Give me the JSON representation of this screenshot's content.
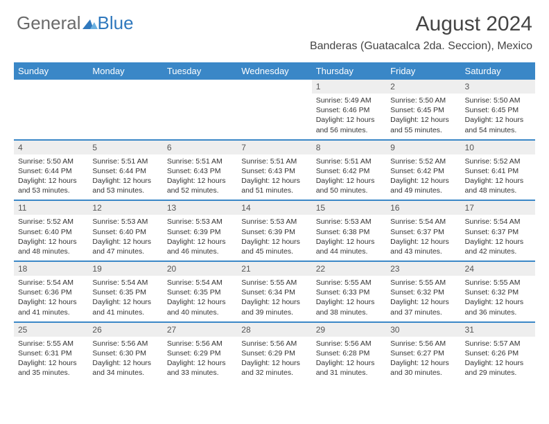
{
  "logo": {
    "general": "General",
    "blue": "Blue"
  },
  "title": "August 2024",
  "location": "Banderas (Guatacalca 2da. Seccion), Mexico",
  "daysOfWeek": [
    "Sunday",
    "Monday",
    "Tuesday",
    "Wednesday",
    "Thursday",
    "Friday",
    "Saturday"
  ],
  "colors": {
    "headerBlue": "#3a87c7",
    "dayNumBg": "#eeeeee",
    "text": "#333333",
    "titleText": "#444444"
  },
  "weeks": [
    {
      "days": [
        {
          "n": "",
          "sunrise": "",
          "sunset": "",
          "daylight1": "",
          "daylight2": ""
        },
        {
          "n": "",
          "sunrise": "",
          "sunset": "",
          "daylight1": "",
          "daylight2": ""
        },
        {
          "n": "",
          "sunrise": "",
          "sunset": "",
          "daylight1": "",
          "daylight2": ""
        },
        {
          "n": "",
          "sunrise": "",
          "sunset": "",
          "daylight1": "",
          "daylight2": ""
        },
        {
          "n": "1",
          "sunrise": "Sunrise: 5:49 AM",
          "sunset": "Sunset: 6:46 PM",
          "daylight1": "Daylight: 12 hours",
          "daylight2": "and 56 minutes."
        },
        {
          "n": "2",
          "sunrise": "Sunrise: 5:50 AM",
          "sunset": "Sunset: 6:45 PM",
          "daylight1": "Daylight: 12 hours",
          "daylight2": "and 55 minutes."
        },
        {
          "n": "3",
          "sunrise": "Sunrise: 5:50 AM",
          "sunset": "Sunset: 6:45 PM",
          "daylight1": "Daylight: 12 hours",
          "daylight2": "and 54 minutes."
        }
      ]
    },
    {
      "days": [
        {
          "n": "4",
          "sunrise": "Sunrise: 5:50 AM",
          "sunset": "Sunset: 6:44 PM",
          "daylight1": "Daylight: 12 hours",
          "daylight2": "and 53 minutes."
        },
        {
          "n": "5",
          "sunrise": "Sunrise: 5:51 AM",
          "sunset": "Sunset: 6:44 PM",
          "daylight1": "Daylight: 12 hours",
          "daylight2": "and 53 minutes."
        },
        {
          "n": "6",
          "sunrise": "Sunrise: 5:51 AM",
          "sunset": "Sunset: 6:43 PM",
          "daylight1": "Daylight: 12 hours",
          "daylight2": "and 52 minutes."
        },
        {
          "n": "7",
          "sunrise": "Sunrise: 5:51 AM",
          "sunset": "Sunset: 6:43 PM",
          "daylight1": "Daylight: 12 hours",
          "daylight2": "and 51 minutes."
        },
        {
          "n": "8",
          "sunrise": "Sunrise: 5:51 AM",
          "sunset": "Sunset: 6:42 PM",
          "daylight1": "Daylight: 12 hours",
          "daylight2": "and 50 minutes."
        },
        {
          "n": "9",
          "sunrise": "Sunrise: 5:52 AM",
          "sunset": "Sunset: 6:42 PM",
          "daylight1": "Daylight: 12 hours",
          "daylight2": "and 49 minutes."
        },
        {
          "n": "10",
          "sunrise": "Sunrise: 5:52 AM",
          "sunset": "Sunset: 6:41 PM",
          "daylight1": "Daylight: 12 hours",
          "daylight2": "and 48 minutes."
        }
      ]
    },
    {
      "days": [
        {
          "n": "11",
          "sunrise": "Sunrise: 5:52 AM",
          "sunset": "Sunset: 6:40 PM",
          "daylight1": "Daylight: 12 hours",
          "daylight2": "and 48 minutes."
        },
        {
          "n": "12",
          "sunrise": "Sunrise: 5:53 AM",
          "sunset": "Sunset: 6:40 PM",
          "daylight1": "Daylight: 12 hours",
          "daylight2": "and 47 minutes."
        },
        {
          "n": "13",
          "sunrise": "Sunrise: 5:53 AM",
          "sunset": "Sunset: 6:39 PM",
          "daylight1": "Daylight: 12 hours",
          "daylight2": "and 46 minutes."
        },
        {
          "n": "14",
          "sunrise": "Sunrise: 5:53 AM",
          "sunset": "Sunset: 6:39 PM",
          "daylight1": "Daylight: 12 hours",
          "daylight2": "and 45 minutes."
        },
        {
          "n": "15",
          "sunrise": "Sunrise: 5:53 AM",
          "sunset": "Sunset: 6:38 PM",
          "daylight1": "Daylight: 12 hours",
          "daylight2": "and 44 minutes."
        },
        {
          "n": "16",
          "sunrise": "Sunrise: 5:54 AM",
          "sunset": "Sunset: 6:37 PM",
          "daylight1": "Daylight: 12 hours",
          "daylight2": "and 43 minutes."
        },
        {
          "n": "17",
          "sunrise": "Sunrise: 5:54 AM",
          "sunset": "Sunset: 6:37 PM",
          "daylight1": "Daylight: 12 hours",
          "daylight2": "and 42 minutes."
        }
      ]
    },
    {
      "days": [
        {
          "n": "18",
          "sunrise": "Sunrise: 5:54 AM",
          "sunset": "Sunset: 6:36 PM",
          "daylight1": "Daylight: 12 hours",
          "daylight2": "and 41 minutes."
        },
        {
          "n": "19",
          "sunrise": "Sunrise: 5:54 AM",
          "sunset": "Sunset: 6:35 PM",
          "daylight1": "Daylight: 12 hours",
          "daylight2": "and 41 minutes."
        },
        {
          "n": "20",
          "sunrise": "Sunrise: 5:54 AM",
          "sunset": "Sunset: 6:35 PM",
          "daylight1": "Daylight: 12 hours",
          "daylight2": "and 40 minutes."
        },
        {
          "n": "21",
          "sunrise": "Sunrise: 5:55 AM",
          "sunset": "Sunset: 6:34 PM",
          "daylight1": "Daylight: 12 hours",
          "daylight2": "and 39 minutes."
        },
        {
          "n": "22",
          "sunrise": "Sunrise: 5:55 AM",
          "sunset": "Sunset: 6:33 PM",
          "daylight1": "Daylight: 12 hours",
          "daylight2": "and 38 minutes."
        },
        {
          "n": "23",
          "sunrise": "Sunrise: 5:55 AM",
          "sunset": "Sunset: 6:32 PM",
          "daylight1": "Daylight: 12 hours",
          "daylight2": "and 37 minutes."
        },
        {
          "n": "24",
          "sunrise": "Sunrise: 5:55 AM",
          "sunset": "Sunset: 6:32 PM",
          "daylight1": "Daylight: 12 hours",
          "daylight2": "and 36 minutes."
        }
      ]
    },
    {
      "days": [
        {
          "n": "25",
          "sunrise": "Sunrise: 5:55 AM",
          "sunset": "Sunset: 6:31 PM",
          "daylight1": "Daylight: 12 hours",
          "daylight2": "and 35 minutes."
        },
        {
          "n": "26",
          "sunrise": "Sunrise: 5:56 AM",
          "sunset": "Sunset: 6:30 PM",
          "daylight1": "Daylight: 12 hours",
          "daylight2": "and 34 minutes."
        },
        {
          "n": "27",
          "sunrise": "Sunrise: 5:56 AM",
          "sunset": "Sunset: 6:29 PM",
          "daylight1": "Daylight: 12 hours",
          "daylight2": "and 33 minutes."
        },
        {
          "n": "28",
          "sunrise": "Sunrise: 5:56 AM",
          "sunset": "Sunset: 6:29 PM",
          "daylight1": "Daylight: 12 hours",
          "daylight2": "and 32 minutes."
        },
        {
          "n": "29",
          "sunrise": "Sunrise: 5:56 AM",
          "sunset": "Sunset: 6:28 PM",
          "daylight1": "Daylight: 12 hours",
          "daylight2": "and 31 minutes."
        },
        {
          "n": "30",
          "sunrise": "Sunrise: 5:56 AM",
          "sunset": "Sunset: 6:27 PM",
          "daylight1": "Daylight: 12 hours",
          "daylight2": "and 30 minutes."
        },
        {
          "n": "31",
          "sunrise": "Sunrise: 5:57 AM",
          "sunset": "Sunset: 6:26 PM",
          "daylight1": "Daylight: 12 hours",
          "daylight2": "and 29 minutes."
        }
      ]
    }
  ]
}
